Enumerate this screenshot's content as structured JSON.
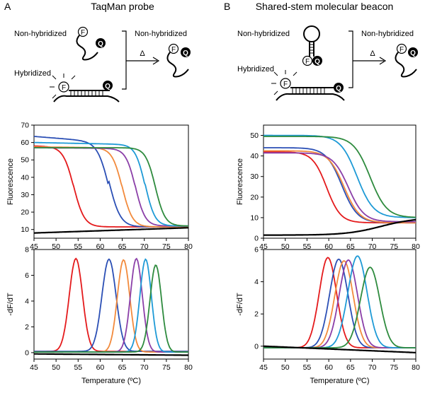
{
  "panels": {
    "A": {
      "letter": "A",
      "title": "TaqMan probe",
      "labels": {
        "nonhyb_left": "Non-hybridized",
        "hybridized": "Hybridized",
        "nonhyb_right": "Non-hybridized",
        "heat": "Δ",
        "fluor": "F",
        "quencher": "Q"
      }
    },
    "B": {
      "letter": "B",
      "title": "Shared-stem molecular beacon",
      "labels": {
        "nonhyb_left": "Non-hybridized",
        "hybridized": "Hybridized",
        "nonhyb_right": "Non-hybridized",
        "heat": "Δ",
        "fluor": "F",
        "quencher": "Q"
      }
    }
  },
  "series_colors": [
    "#e41a1c",
    "#2b4fb5",
    "#f28a3c",
    "#8b3fa8",
    "#1e9ad6",
    "#2e8b3e",
    "#000000"
  ],
  "chart_data": [
    {
      "id": "A-fluorescence",
      "type": "line",
      "xlabel": "",
      "ylabel": "Fluorescence",
      "xlim": [
        45,
        80
      ],
      "ylim": [
        5,
        70
      ],
      "xticks": [
        45,
        50,
        55,
        60,
        65,
        70,
        75,
        80
      ],
      "yticks": [
        10,
        20,
        30,
        40,
        50,
        60,
        70
      ],
      "show_xticklabels": true,
      "series": [
        {
          "kind": "sigmoid",
          "top": 58,
          "bottom": 11.5,
          "tm": 54,
          "width": 1.2,
          "slope": -0.05
        },
        {
          "kind": "sigmoid",
          "top": 63.5,
          "bottom": 11.5,
          "tm": 62,
          "width": 1.3,
          "slope": -0.2
        },
        {
          "kind": "sigmoid",
          "top": 57.5,
          "bottom": 11.5,
          "tm": 65,
          "width": 1.15,
          "slope": -0.03
        },
        {
          "kind": "sigmoid",
          "top": 57,
          "bottom": 12,
          "tm": 68,
          "width": 1.1,
          "slope": -0.02
        },
        {
          "kind": "sigmoid",
          "top": 60,
          "bottom": 12,
          "tm": 70.2,
          "width": 1.1,
          "slope": -0.05
        },
        {
          "kind": "sigmoid",
          "top": 57,
          "bottom": 12,
          "tm": 72.5,
          "width": 1.1,
          "slope": 0
        },
        {
          "kind": "linear",
          "y0": 8,
          "y1": 11
        }
      ]
    },
    {
      "id": "A-derivative",
      "type": "line",
      "xlabel": "Temperature (ºC)",
      "ylabel": "-dF/dT",
      "xlim": [
        45,
        80
      ],
      "ylim": [
        -0.5,
        8
      ],
      "xticks": [
        45,
        50,
        55,
        60,
        65,
        70,
        75,
        80
      ],
      "yticks": [
        0,
        2,
        4,
        6,
        8
      ],
      "show_xticklabels": true,
      "series": [
        {
          "kind": "peak",
          "tm": 54.5,
          "peak": 7.3,
          "width": 1.5,
          "base": 0.1
        },
        {
          "kind": "peak",
          "tm": 62,
          "peak": 7.25,
          "width": 1.6,
          "base": 0.1
        },
        {
          "kind": "peak",
          "tm": 65.3,
          "peak": 7.2,
          "width": 1.4,
          "base": 0.05
        },
        {
          "kind": "peak",
          "tm": 68.2,
          "peak": 7.3,
          "width": 1.35,
          "base": 0.05
        },
        {
          "kind": "peak",
          "tm": 70.3,
          "peak": 7.25,
          "width": 1.3,
          "base": 0.05
        },
        {
          "kind": "peak",
          "tm": 72.6,
          "peak": 6.8,
          "width": 1.3,
          "base": 0.05
        },
        {
          "kind": "linear",
          "y0": -0.1,
          "y1": -0.2
        }
      ]
    },
    {
      "id": "B-fluorescence",
      "type": "line",
      "xlabel": "",
      "ylabel": "Fluorescence",
      "xlim": [
        45,
        80
      ],
      "ylim": [
        0,
        55
      ],
      "xticks": [
        45,
        50,
        55,
        60,
        65,
        70,
        75,
        80
      ],
      "yticks": [
        0,
        10,
        20,
        30,
        40,
        50
      ],
      "show_xticklabels": true,
      "series": [
        {
          "kind": "sigmoid",
          "top": 42,
          "bottom": 7.5,
          "tm": 59.5,
          "width": 1.6,
          "slope": 0
        },
        {
          "kind": "sigmoid",
          "top": 44,
          "bottom": 7.5,
          "tm": 63,
          "width": 1.8,
          "slope": 0
        },
        {
          "kind": "sigmoid",
          "top": 42.5,
          "bottom": 7.5,
          "tm": 63.5,
          "width": 1.8,
          "slope": 0
        },
        {
          "kind": "sigmoid",
          "top": 41.5,
          "bottom": 8,
          "tm": 64.5,
          "width": 1.8,
          "slope": 0
        },
        {
          "kind": "sigmoid",
          "top": 50,
          "bottom": 10,
          "tm": 66.5,
          "width": 1.9,
          "slope": 0
        },
        {
          "kind": "sigmoid",
          "top": 49.5,
          "bottom": 10,
          "tm": 69.5,
          "width": 1.9,
          "slope": 0
        },
        {
          "kind": "rise",
          "y0": 1.5,
          "y1": 10,
          "tm": 72,
          "width": 4
        }
      ]
    },
    {
      "id": "B-derivative",
      "type": "line",
      "xlabel": "Temperature (ºC)",
      "ylabel": "-dF/dT",
      "xlim": [
        45,
        80
      ],
      "ylim": [
        -0.8,
        6
      ],
      "xticks": [
        45,
        50,
        55,
        60,
        65,
        70,
        75,
        80
      ],
      "yticks": [
        0,
        2,
        4,
        6
      ],
      "show_xticklabels": true,
      "series": [
        {
          "kind": "peak",
          "tm": 59.8,
          "peak": 5.5,
          "width": 2.0,
          "base": -0.1
        },
        {
          "kind": "peak",
          "tm": 62.3,
          "peak": 5.4,
          "width": 2.1,
          "base": -0.1
        },
        {
          "kind": "peak",
          "tm": 63.5,
          "peak": 5.3,
          "width": 2.1,
          "base": -0.1
        },
        {
          "kind": "peak",
          "tm": 64.5,
          "peak": 5.35,
          "width": 2.1,
          "base": -0.1
        },
        {
          "kind": "peak",
          "tm": 66.6,
          "peak": 5.6,
          "width": 2.2,
          "base": -0.1
        },
        {
          "kind": "peak",
          "tm": 69.5,
          "peak": 4.9,
          "width": 2.2,
          "base": -0.1
        },
        {
          "kind": "linear",
          "y0": 0.0,
          "y1": -0.4
        }
      ]
    }
  ]
}
